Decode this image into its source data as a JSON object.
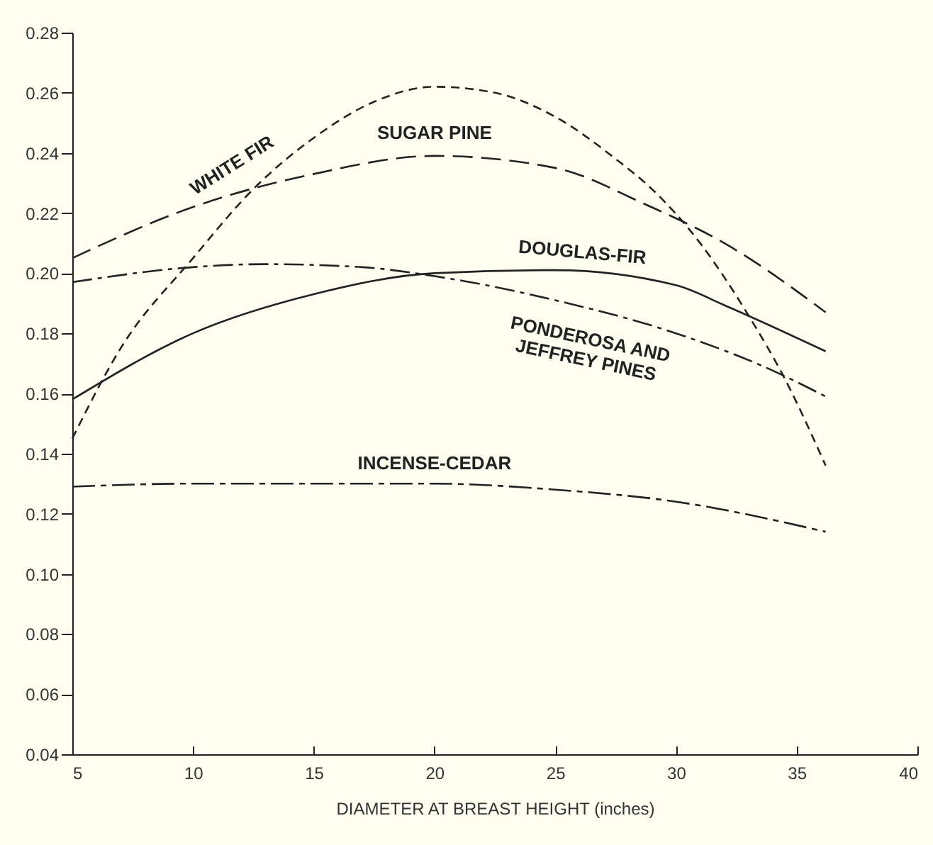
{
  "chart_data": {
    "type": "line",
    "xlabel": "DIAMETER AT BREAST HEIGHT (inches)",
    "xlim": [
      5,
      40
    ],
    "xticks": [
      5,
      10,
      15,
      20,
      25,
      30,
      35,
      40
    ],
    "ylim": [
      0.04,
      0.28
    ],
    "yticks": [
      0.04,
      0.06,
      0.08,
      {
        "value": 0.1,
        "label": "0.10"
      },
      0.12,
      0.14,
      0.16,
      0.18,
      {
        "value": 0.2,
        "label": "0.20"
      },
      0.22,
      0.24,
      0.26,
      0.28
    ],
    "grid": false,
    "legend": false,
    "marker": "none",
    "series": [
      {
        "name": "WHITE FIR",
        "color": "#222222",
        "line_style": "dashed",
        "x": [
          5,
          7,
          10,
          12.5,
          15,
          17.5,
          20,
          22.5,
          25,
          27.5,
          29,
          31,
          33,
          34.5,
          36.2
        ],
        "values": [
          0.145,
          0.175,
          0.205,
          0.228,
          0.245,
          0.257,
          0.262,
          0.26,
          0.252,
          0.238,
          0.228,
          0.21,
          0.186,
          0.165,
          0.136
        ]
      },
      {
        "name": "SUGAR PINE",
        "color": "#222222",
        "line_style": "dashed",
        "x": [
          5,
          10,
          15,
          20,
          25,
          28.7,
          32,
          36.2
        ],
        "values": [
          0.205,
          0.222,
          0.233,
          0.239,
          0.235,
          0.223,
          0.21,
          0.187
        ]
      },
      {
        "name": "DOUGLAS-FIR",
        "color": "#222222",
        "line_style": "solid",
        "x": [
          5,
          10,
          15,
          20,
          25,
          30,
          32.1,
          36.2
        ],
        "values": [
          0.158,
          0.18,
          0.193,
          0.2,
          0.201,
          0.196,
          0.189,
          0.174
        ]
      },
      {
        "name": "PONDEROSA AND JEFFREY PINES",
        "color": "#222222",
        "line_style": "dashed",
        "x": [
          5,
          10,
          13,
          17,
          20,
          25,
          30,
          33.9,
          36.2
        ],
        "values": [
          0.197,
          0.202,
          0.203,
          0.202,
          0.199,
          0.191,
          0.18,
          0.168,
          0.159
        ]
      },
      {
        "name": "INCENSE-CEDAR",
        "color": "#222222",
        "line_style": "dashed",
        "x": [
          5,
          10,
          15,
          20,
          25,
          30,
          36.2
        ],
        "values": [
          0.129,
          0.13,
          0.13,
          0.13,
          0.128,
          0.124,
          0.114
        ]
      }
    ]
  }
}
